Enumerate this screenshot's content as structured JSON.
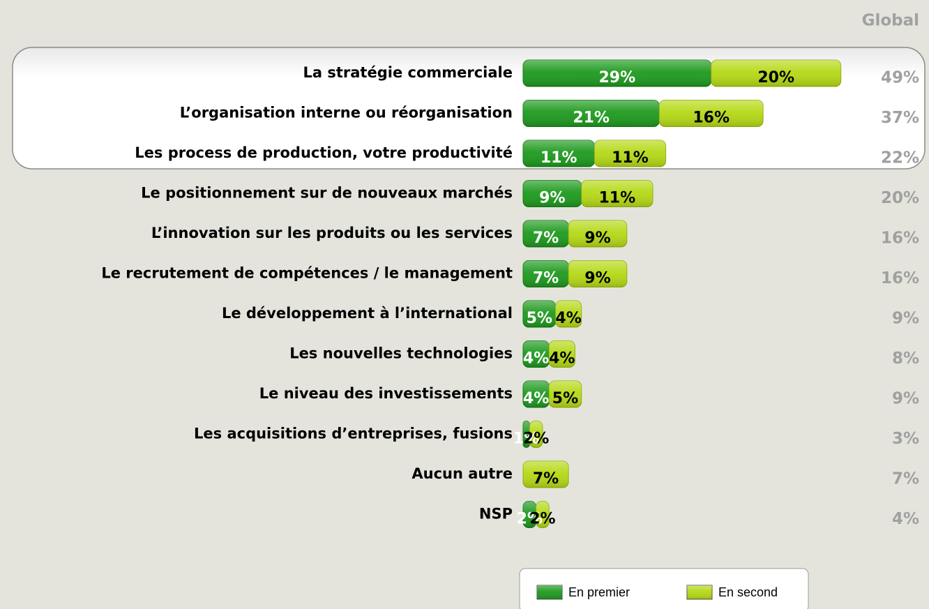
{
  "chart_data": {
    "type": "bar",
    "orientation": "horizontal",
    "stacked": true,
    "categories": [
      "La stratégie commerciale",
      "L’organisation interne ou réorganisation",
      "Les process de production, votre productivité",
      "Le positionnement sur de nouveaux marchés",
      "L’innovation sur les produits ou les services",
      "Le recrutement de compétences / le management",
      "Le développement à l’international",
      "Les nouvelles technologies",
      "Le niveau des investissements",
      "Les acquisitions d’entreprises, fusions",
      "Aucun autre",
      "NSP"
    ],
    "series": [
      {
        "name": "En premier",
        "color": "#1e9a1e",
        "values": [
          29,
          21,
          11,
          9,
          7,
          7,
          5,
          4,
          4,
          1,
          0,
          2
        ],
        "value_labels": [
          "29%",
          "21%",
          "11%",
          "9%",
          "7%",
          "7%",
          "5%",
          "4%",
          "4%",
          "1%",
          null,
          "2%"
        ]
      },
      {
        "name": "En second",
        "color": "#b5d916",
        "values": [
          20,
          16,
          11,
          11,
          9,
          9,
          4,
          4,
          5,
          2,
          7,
          2
        ],
        "value_labels": [
          "20%",
          "16%",
          "11%",
          "11%",
          "9%",
          "9%",
          "4%",
          "4%",
          "5%",
          "2%",
          "7%",
          "2%"
        ]
      }
    ],
    "totals": {
      "name": "Global",
      "color": "#a0a0a0",
      "values": [
        49,
        37,
        22,
        20,
        16,
        16,
        9,
        8,
        9,
        3,
        7,
        4
      ],
      "value_labels": [
        "49%",
        "37%",
        "22%",
        "20%",
        "16%",
        "16%",
        "9%",
        "8%",
        "9%",
        "3%",
        "7%",
        "4%"
      ]
    }
  }
}
